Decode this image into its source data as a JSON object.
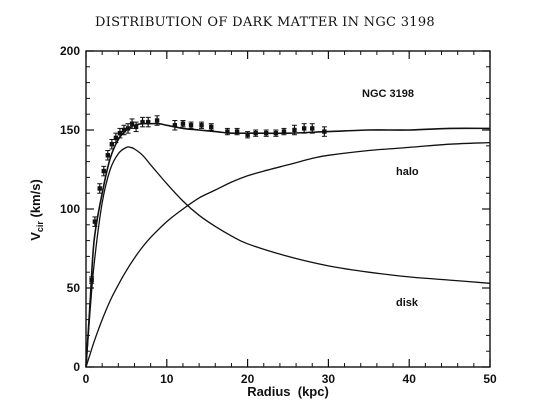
{
  "chart_data": {
    "type": "line",
    "title": "DISTRIBUTION OF DARK MATTER IN NGC 3198",
    "xlabel": "Radius  (kpc)",
    "ylabel_main": "V",
    "ylabel_sub": "cir",
    "ylabel_unit": " (km/s)",
    "xlim": [
      0,
      50
    ],
    "ylim": [
      0,
      200
    ],
    "xticks": [
      0,
      10,
      20,
      30,
      40,
      50
    ],
    "yticks": [
      0,
      50,
      100,
      150,
      200
    ],
    "annotations": {
      "galaxy": "NGC 3198",
      "halo": "halo",
      "disk": "disk"
    },
    "series": [
      {
        "name": "halo",
        "x": [
          0,
          0.5,
          1,
          2,
          3,
          4,
          5,
          6,
          7,
          8,
          10,
          12,
          14,
          16,
          18,
          20,
          22,
          25,
          28,
          30,
          35,
          40,
          45,
          50
        ],
        "y": [
          0,
          8,
          16,
          30,
          42,
          52,
          61,
          69,
          76,
          82,
          92,
          100,
          107,
          112,
          117,
          121,
          124,
          128,
          132,
          134,
          137,
          139,
          141,
          142
        ]
      },
      {
        "name": "disk",
        "x": [
          0,
          0.5,
          1,
          2,
          3,
          4,
          5,
          5.5,
          6,
          7,
          8,
          10,
          12,
          14,
          16,
          18,
          20,
          25,
          30,
          35,
          40,
          45,
          50
        ],
        "y": [
          0,
          35,
          65,
          104,
          125,
          135,
          139,
          139,
          138,
          134,
          128,
          116,
          105,
          96,
          89,
          83,
          78,
          70,
          64,
          60,
          57,
          55,
          53
        ]
      },
      {
        "name": "total",
        "x": [
          0,
          0.5,
          1,
          2,
          3,
          4,
          5,
          6,
          7,
          8,
          9,
          10,
          12,
          14,
          16,
          18,
          20,
          25,
          30,
          35,
          40,
          45,
          50
        ],
        "y": [
          0,
          40,
          80,
          110,
          132,
          144,
          150,
          153,
          154,
          154,
          154,
          153,
          151,
          150,
          149,
          148,
          148,
          148,
          149,
          150,
          150,
          151,
          151
        ]
      },
      {
        "name": "observed",
        "x": [
          0.7,
          1.1,
          1.7,
          2.2,
          2.7,
          3.2,
          3.7,
          4.2,
          4.7,
          5.2,
          5.7,
          6.2,
          7.0,
          7.7,
          8.8,
          11,
          12,
          13,
          14.3,
          15.5,
          17.5,
          18.7,
          20,
          21,
          22.3,
          23.5,
          24.5,
          25.8,
          27,
          28,
          29.5
        ],
        "y": [
          55,
          92,
          113,
          124,
          134,
          141,
          145,
          148,
          150,
          151,
          154,
          152,
          155,
          155,
          156,
          153,
          154,
          153,
          153,
          152,
          149,
          149,
          147,
          148,
          148,
          148,
          149,
          150,
          151,
          151,
          149
        ],
        "err": [
          2,
          3,
          3,
          3,
          3,
          3,
          3,
          3,
          3,
          3,
          3,
          3,
          3,
          3,
          3,
          3,
          2,
          2,
          2,
          2,
          2,
          2,
          2,
          2,
          2,
          2,
          2,
          3,
          3,
          3,
          3
        ]
      }
    ]
  }
}
